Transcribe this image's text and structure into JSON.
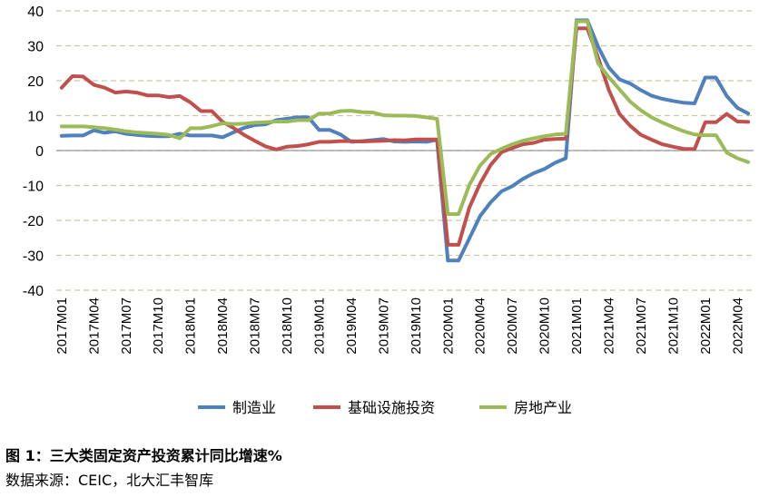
{
  "chart_data": {
    "type": "line",
    "title": "",
    "xlabel": "",
    "ylabel": "",
    "ylim": [
      -40,
      40
    ],
    "yticks": [
      -40,
      -30,
      -20,
      -10,
      0,
      10,
      20,
      30,
      40
    ],
    "grid": "horizontal dashed",
    "legend_position": "bottom",
    "x": [
      "2017M01",
      "2017M02",
      "2017M03",
      "2017M04",
      "2017M05",
      "2017M06",
      "2017M07",
      "2017M08",
      "2017M09",
      "2017M10",
      "2017M11",
      "2017M12",
      "2018M01",
      "2018M02",
      "2018M03",
      "2018M04",
      "2018M05",
      "2018M06",
      "2018M07",
      "2018M08",
      "2018M09",
      "2018M10",
      "2018M11",
      "2018M12",
      "2019M01",
      "2019M02",
      "2019M03",
      "2019M04",
      "2019M05",
      "2019M06",
      "2019M07",
      "2019M08",
      "2019M09",
      "2019M10",
      "2019M11",
      "2019M12",
      "2020M01",
      "2020M02",
      "2020M03",
      "2020M04",
      "2020M05",
      "2020M06",
      "2020M07",
      "2020M08",
      "2020M09",
      "2020M10",
      "2020M11",
      "2020M12",
      "2021M01",
      "2021M02",
      "2021M03",
      "2021M04",
      "2021M05",
      "2021M06",
      "2021M07",
      "2021M08",
      "2021M09",
      "2021M10",
      "2021M11",
      "2021M12",
      "2022M01",
      "2022M02",
      "2022M03",
      "2022M04",
      "2022M05"
    ],
    "xtick_labels": [
      "2017M01",
      "2017M04",
      "2017M07",
      "2017M10",
      "2018M01",
      "2018M04",
      "2018M07",
      "2018M10",
      "2019M01",
      "2019M04",
      "2019M07",
      "2019M10",
      "2020M01",
      "2020M04",
      "2020M07",
      "2020M10",
      "2021M01",
      "2021M04",
      "2021M07",
      "2021M10",
      "2022M01",
      "2022M04"
    ],
    "series": [
      {
        "name": "制造业",
        "color": "#4F81BD",
        "values": [
          4.2,
          4.3,
          4.3,
          5.8,
          5.1,
          5.5,
          4.8,
          4.5,
          4.2,
          4.1,
          4.1,
          4.8,
          4.3,
          4.3,
          4.3,
          3.8,
          5.2,
          6.5,
          7.3,
          7.5,
          8.7,
          9.1,
          9.5,
          9.5,
          5.9,
          5.9,
          4.6,
          2.5,
          2.7,
          3.0,
          3.3,
          2.6,
          2.5,
          2.6,
          2.5,
          3.1,
          -31.5,
          -31.5,
          -25.2,
          -18.8,
          -14.8,
          -11.7,
          -10.2,
          -8.1,
          -6.5,
          -5.3,
          -3.5,
          -2.2,
          37.3,
          37.3,
          29.8,
          23.8,
          20.4,
          19.2,
          17.3,
          15.7,
          14.8,
          14.2,
          13.7,
          13.5,
          20.9,
          20.9,
          15.6,
          12.2,
          10.6
        ]
      },
      {
        "name": "基础设施投资",
        "color": "#C0504D",
        "values": [
          18.0,
          21.3,
          21.2,
          18.8,
          18.0,
          16.6,
          16.9,
          16.6,
          15.8,
          15.8,
          15.3,
          15.6,
          13.8,
          11.3,
          11.3,
          8.2,
          6.5,
          4.5,
          2.8,
          1.2,
          0.3,
          1.1,
          1.3,
          1.8,
          2.5,
          2.5,
          2.7,
          2.7,
          2.6,
          2.7,
          2.8,
          3.0,
          2.9,
          3.2,
          3.2,
          3.2,
          -27.0,
          -27.0,
          -16.4,
          -9.5,
          -4.1,
          -0.5,
          0.7,
          1.8,
          2.2,
          3.1,
          3.3,
          3.4,
          35.0,
          35.0,
          26.7,
          17.4,
          10.5,
          7.1,
          4.5,
          3.1,
          1.8,
          1.1,
          0.5,
          0.4,
          8.1,
          8.1,
          10.5,
          8.3,
          8.2
        ]
      },
      {
        "name": "房地产业",
        "color": "#9BBB59",
        "values": [
          6.9,
          6.9,
          6.9,
          6.7,
          6.4,
          6.0,
          5.5,
          5.2,
          5.0,
          4.8,
          4.5,
          3.5,
          6.4,
          6.4,
          7.0,
          7.8,
          7.6,
          7.7,
          8.0,
          8.1,
          8.3,
          8.3,
          8.7,
          8.7,
          10.6,
          10.6,
          11.3,
          11.4,
          11.0,
          10.9,
          10.1,
          10.0,
          10.0,
          9.9,
          9.5,
          9.1,
          -18.2,
          -18.2,
          -9.9,
          -4.3,
          -1.0,
          0.5,
          1.8,
          2.8,
          3.5,
          4.1,
          4.6,
          4.8,
          37.0,
          37.0,
          25.0,
          21.0,
          17.5,
          14.0,
          11.5,
          9.5,
          8.0,
          6.7,
          5.5,
          4.6,
          4.4,
          4.4,
          -0.6,
          -2.2,
          -3.3
        ]
      }
    ]
  },
  "caption": {
    "title": "图 1：三大类固定资产投资累计同比增速%",
    "source": "数据来源：CEIC，北大汇丰智库"
  }
}
